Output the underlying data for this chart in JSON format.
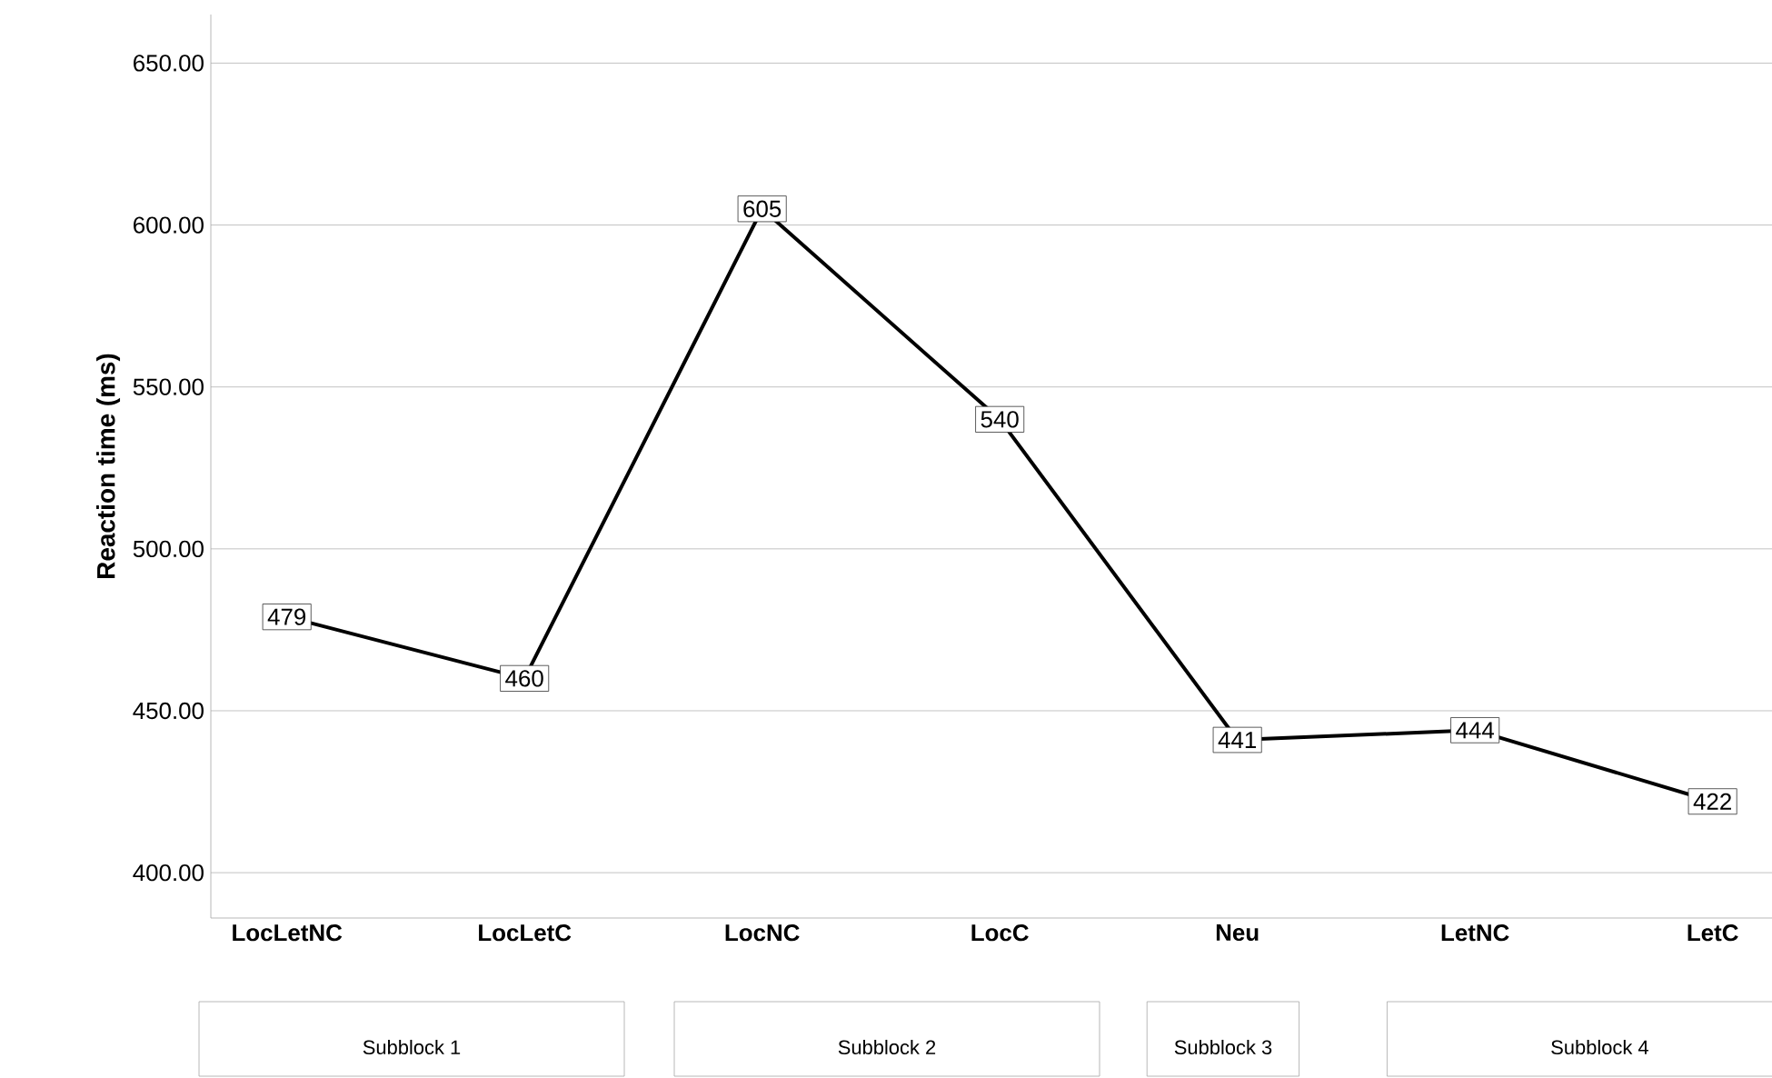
{
  "chart_data": {
    "type": "line",
    "ylabel": "Reaction time (ms)",
    "categories": [
      "LocLetNC",
      "LocLetC",
      "LocNC",
      "LocC",
      "Neu",
      "LetNC",
      "LetC"
    ],
    "series": [
      {
        "color": "#000000",
        "values": [
          479,
          460,
          605,
          540,
          441,
          444,
          422
        ]
      }
    ],
    "ylim": [
      386,
      665
    ],
    "yticks": [
      {
        "value": 400,
        "label": "400.00"
      },
      {
        "value": 450,
        "label": "450.00"
      },
      {
        "value": 500,
        "label": "500.00"
      },
      {
        "value": 550,
        "label": "550.00"
      },
      {
        "value": 600,
        "label": "600.00"
      },
      {
        "value": 650,
        "label": "650.00"
      }
    ],
    "grid": "y",
    "data_labels": true,
    "line_style": "solid",
    "marker": "square",
    "annotations": [
      "Subblock 1",
      "Subblock 2",
      "Subblock 3",
      "Subblock 4"
    ]
  }
}
